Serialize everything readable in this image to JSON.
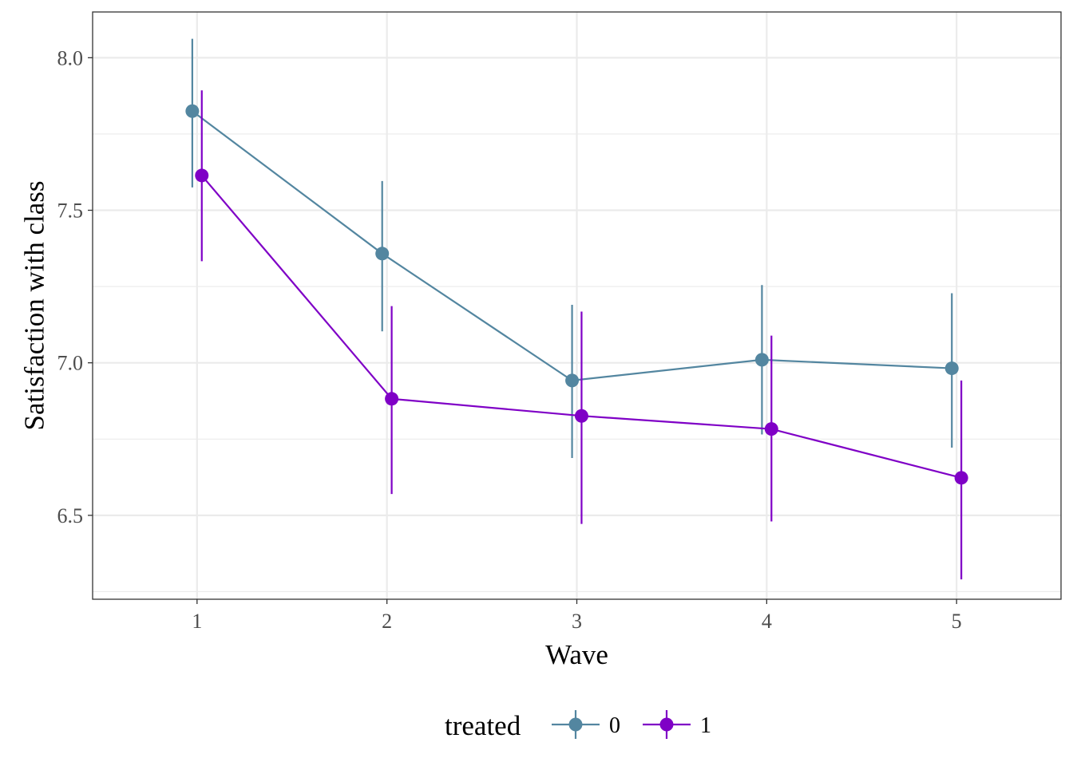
{
  "chart_data": {
    "type": "line",
    "title": "",
    "xlabel": "Wave",
    "ylabel": "Satisfaction with class",
    "x": [
      1,
      2,
      3,
      4,
      5
    ],
    "x_tick_labels": [
      "1",
      "2",
      "3",
      "4",
      "5"
    ],
    "xlim": [
      0.45,
      5.55
    ],
    "ylim": [
      6.225,
      8.15
    ],
    "y_ticks": [
      6.5,
      7.0,
      7.5,
      8.0
    ],
    "y_tick_labels": [
      "6.5",
      "7.0",
      "7.5",
      "8.0"
    ],
    "grid": true,
    "legend": {
      "title": "treated",
      "position": "bottom"
    },
    "series": [
      {
        "name": "0",
        "color": "#5386a0",
        "values": [
          7.825,
          7.358,
          6.942,
          7.01,
          6.982
        ],
        "lower": [
          7.575,
          7.103,
          6.688,
          6.765,
          6.722
        ],
        "upper": [
          8.062,
          7.596,
          7.19,
          7.255,
          7.228
        ]
      },
      {
        "name": "1",
        "color": "#7f00c6",
        "values": [
          7.614,
          6.882,
          6.826,
          6.783,
          6.623
        ],
        "lower": [
          7.333,
          6.57,
          6.472,
          6.48,
          6.29
        ],
        "upper": [
          7.893,
          7.186,
          7.168,
          7.089,
          6.942
        ]
      }
    ]
  }
}
